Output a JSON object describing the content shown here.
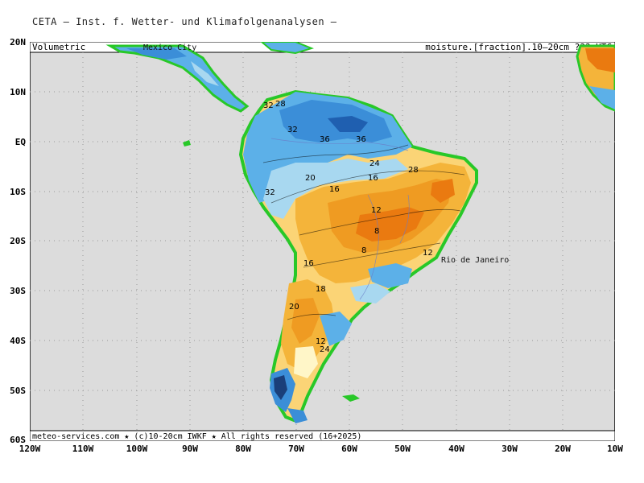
{
  "header": {
    "title": "CETA – Inst. f. Wetter- und Klimafolgenanalysen –"
  },
  "top_bar": {
    "left": "Volumetric",
    "right": "moisture.[fraction].10–20cm ??? UTC"
  },
  "bottom_bar": {
    "text": "meteo-services.com ★ (c)10-20cm IWKF ★ All rights reserved (16+2025)"
  },
  "places": {
    "mexico_city": "Mexico City",
    "rio": "Rio de Janeiro"
  },
  "lat_labels": [
    "20N",
    "10N",
    "EQ",
    "10S",
    "20S",
    "30S",
    "40S",
    "50S",
    "60S"
  ],
  "lon_labels": [
    "120W",
    "110W",
    "100W",
    "90W",
    "80W",
    "70W",
    "60W",
    "50W",
    "40W",
    "30W",
    "20W",
    "10W"
  ],
  "contour_labels": [
    "32",
    "28",
    "32",
    "36",
    "36",
    "24",
    "28",
    "20",
    "16",
    "16",
    "12",
    "8",
    "8",
    "12",
    "16",
    "18",
    "20",
    "24",
    "12",
    "32"
  ],
  "colors": {
    "background": "#dcdcdc",
    "ocean": "#dcdcdc",
    "wet_dark": "#3b8ed8",
    "wet": "#5cb0e8",
    "moist": "#a8d8f0",
    "neutral": "#fff6c8",
    "dry_light": "#fbd476",
    "dry": "#f4b43a",
    "dry_strong": "#ef9b22",
    "very_dry": "#ea7a10",
    "coast_green": "#28c828"
  }
}
